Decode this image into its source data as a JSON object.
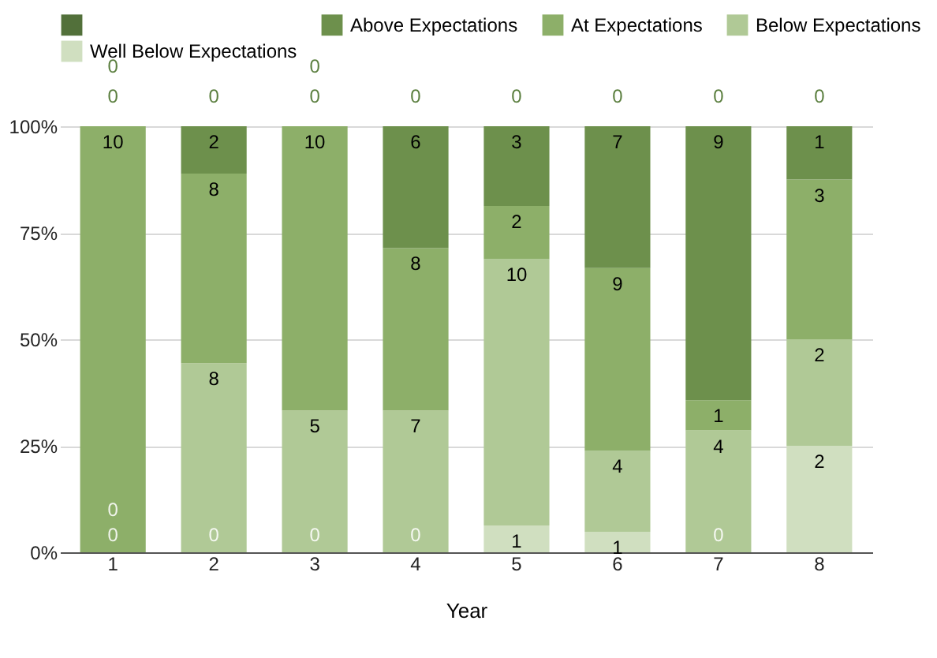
{
  "chart_data": {
    "type": "bar",
    "stacked": true,
    "xlabel": "Year",
    "categories": [
      "1",
      "2",
      "3",
      "4",
      "5",
      "6",
      "7",
      "8"
    ],
    "ylim": [
      0,
      100
    ],
    "yticks": [
      {
        "value": 0,
        "label": "0%"
      },
      {
        "value": 25,
        "label": "25%"
      },
      {
        "value": 50,
        "label": "50%"
      },
      {
        "value": 75,
        "label": "75%"
      },
      {
        "value": 100,
        "label": "100%"
      }
    ],
    "grid": "y",
    "legend": "top",
    "series": [
      {
        "name": "Well Below Expectations",
        "color": "#d0dfc0",
        "values": [
          0,
          0,
          0,
          0,
          6.3,
          4.8,
          0,
          25
        ]
      },
      {
        "name": "Below Expectations",
        "color": "#b0c996",
        "values": [
          0,
          44.4,
          33.3,
          33.3,
          62.5,
          19,
          28.6,
          25
        ]
      },
      {
        "name": "At Expectations",
        "color": "#8daf69",
        "values": [
          100,
          44.5,
          66.7,
          38.1,
          12.5,
          42.9,
          7.1,
          37.5
        ]
      },
      {
        "name": "Above Expectations",
        "color": "#6d904c",
        "values": [
          0,
          11.1,
          0,
          28.6,
          18.7,
          33.3,
          64.3,
          12.5
        ]
      },
      {
        "color": "#52703a",
        "values": [
          0,
          0,
          0,
          0,
          0,
          0,
          0,
          0
        ]
      }
    ],
    "annotations": [
      {
        "text": "0",
        "x": "1",
        "y": 0
      },
      {
        "text": "0",
        "x": "1",
        "y": 0
      },
      {
        "text": "10",
        "x": "1",
        "y": 100
      },
      {
        "text": "0",
        "x": "1",
        "y": 100
      },
      {
        "text": "0",
        "x": "1",
        "y": 100
      },
      {
        "text": "0",
        "x": "2",
        "y": 0
      },
      {
        "text": "8",
        "x": "2",
        "y": 44.4
      },
      {
        "text": "8",
        "x": "2",
        "y": 88.9
      },
      {
        "text": "2",
        "x": "2",
        "y": 100
      },
      {
        "text": "0",
        "x": "2",
        "y": 100
      },
      {
        "text": "0",
        "x": "3",
        "y": 0
      },
      {
        "text": "5",
        "x": "3",
        "y": 33.3
      },
      {
        "text": "10",
        "x": "3",
        "y": 100
      },
      {
        "text": "0",
        "x": "3",
        "y": 100
      },
      {
        "text": "0",
        "x": "3",
        "y": 100
      },
      {
        "text": "0",
        "x": "4",
        "y": 0
      },
      {
        "text": "7",
        "x": "4",
        "y": 33.3
      },
      {
        "text": "8",
        "x": "4",
        "y": 71.4
      },
      {
        "text": "6",
        "x": "4",
        "y": 100
      },
      {
        "text": "0",
        "x": "4",
        "y": 100
      },
      {
        "text": "1",
        "x": "5",
        "y": 6.3
      },
      {
        "text": "10",
        "x": "5",
        "y": 68.8
      },
      {
        "text": "2",
        "x": "5",
        "y": 81.3
      },
      {
        "text": "3",
        "x": "5",
        "y": 100
      },
      {
        "text": "0",
        "x": "5",
        "y": 100
      },
      {
        "text": "1",
        "x": "6",
        "y": 4.8
      },
      {
        "text": "4",
        "x": "6",
        "y": 23.8
      },
      {
        "text": "9",
        "x": "6",
        "y": 66.7
      },
      {
        "text": "7",
        "x": "6",
        "y": 100
      },
      {
        "text": "0",
        "x": "6",
        "y": 100
      },
      {
        "text": "0",
        "x": "7",
        "y": 0
      },
      {
        "text": "4",
        "x": "7",
        "y": 28.6
      },
      {
        "text": "1",
        "x": "7",
        "y": 35.7
      },
      {
        "text": "9",
        "x": "7",
        "y": 100
      },
      {
        "text": "0",
        "x": "7",
        "y": 100
      },
      {
        "text": "2",
        "x": "8",
        "y": 25
      },
      {
        "text": "2",
        "x": "8",
        "y": 50
      },
      {
        "text": "3",
        "x": "8",
        "y": 87.5
      },
      {
        "text": "1",
        "x": "8",
        "y": 100
      },
      {
        "text": "0",
        "x": "8",
        "y": 100
      }
    ]
  }
}
